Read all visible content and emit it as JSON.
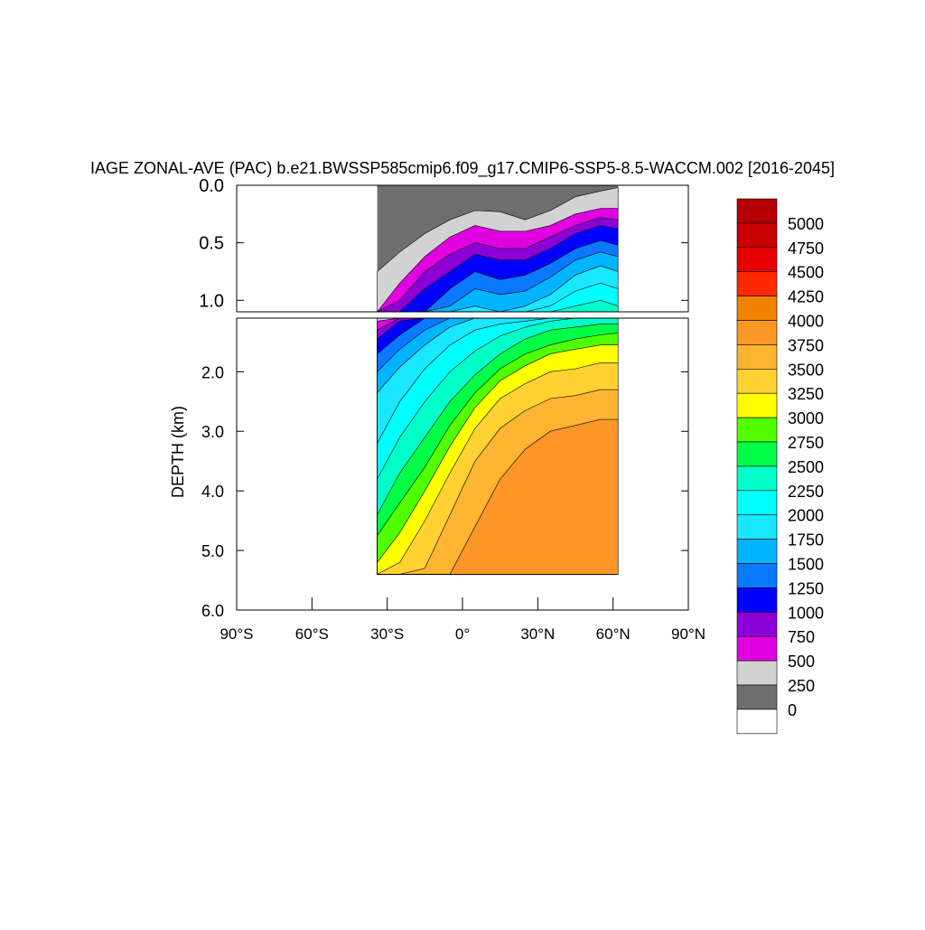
{
  "chart_data": {
    "type": "heatmap",
    "title": "IAGE ZONAL-AVE (PAC) b.e21.BWSSP585cmip6.f09_g17.CMIP6-SSP5-8.5-WACCM.002 [2016-2045]",
    "xlabel": "",
    "ylabel": "DEPTH (km)",
    "x_ticks": [
      "90°S",
      "60°S",
      "30°S",
      "0°",
      "30°N",
      "60°N",
      "90°N"
    ],
    "x_tick_values": [
      -90,
      -60,
      -30,
      0,
      30,
      60,
      90
    ],
    "xlim": [
      -90,
      90
    ],
    "upper_panel": {
      "ylim": [
        0.0,
        1.1
      ],
      "y_ticks": [
        "0.0",
        "0.5",
        "1.0"
      ],
      "y_tick_values": [
        0.0,
        0.5,
        1.0
      ]
    },
    "lower_panel": {
      "ylim": [
        1.1,
        6.0
      ],
      "y_ticks": [
        "2.0",
        "3.0",
        "4.0",
        "5.0",
        "6.0"
      ],
      "y_tick_values": [
        2.0,
        3.0,
        4.0,
        5.0,
        6.0
      ]
    },
    "contour_levels": [
      0,
      250,
      500,
      750,
      1000,
      1250,
      1500,
      1750,
      2000,
      2250,
      2500,
      2750,
      3000,
      3250,
      3500,
      3750,
      4000,
      4250,
      4500,
      4750,
      5000
    ],
    "colorbar_labels": [
      "5000",
      "4750",
      "4500",
      "4250",
      "4000",
      "3750",
      "3500",
      "3250",
      "3000",
      "2750",
      "2500",
      "2250",
      "2000",
      "1750",
      "1500",
      "1250",
      "1000",
      "750",
      "500",
      "250",
      "0"
    ],
    "colors": [
      "#ffffff",
      "#6e6e6e",
      "#d2d2d2",
      "#e100e1",
      "#8c00d7",
      "#0000ff",
      "#0a78ff",
      "#00b4ff",
      "#19e6ff",
      "#00ffff",
      "#00ffc8",
      "#00ff46",
      "#50ff00",
      "#ffff00",
      "#ffd232",
      "#ffb432",
      "#ff9628",
      "#f08200",
      "#ff2800",
      "#e60000",
      "#c80000",
      "#b40000"
    ],
    "data_domain": {
      "lat_range": [
        -34,
        62
      ],
      "max_depth": 5.4
    },
    "surface_contours": {
      "lat": [
        -34,
        -25,
        -15,
        -5,
        5,
        15,
        25,
        35,
        45,
        55,
        62
      ],
      "levels": [
        {
          "value": 250,
          "depth": [
            0.75,
            0.58,
            0.42,
            0.3,
            0.22,
            0.23,
            0.3,
            0.22,
            0.1,
            0.05,
            0.02
          ]
        },
        {
          "value": 500,
          "depth": [
            1.15,
            0.85,
            0.62,
            0.45,
            0.35,
            0.4,
            0.4,
            0.35,
            0.25,
            0.2,
            0.2
          ]
        },
        {
          "value": 750,
          "depth": [
            1.3,
            1.0,
            0.75,
            0.6,
            0.5,
            0.55,
            0.55,
            0.45,
            0.35,
            0.28,
            0.3
          ]
        },
        {
          "value": 1000,
          "depth": [
            1.45,
            1.15,
            0.9,
            0.75,
            0.6,
            0.65,
            0.65,
            0.55,
            0.42,
            0.35,
            0.38
          ]
        },
        {
          "value": 1250,
          "depth": [
            1.7,
            1.38,
            1.1,
            0.9,
            0.75,
            0.82,
            0.78,
            0.68,
            0.55,
            0.48,
            0.52
          ]
        },
        {
          "value": 1500,
          "depth": [
            2.0,
            1.62,
            1.3,
            1.05,
            0.9,
            0.95,
            0.92,
            0.8,
            0.65,
            0.58,
            0.62
          ]
        },
        {
          "value": 1750,
          "depth": [
            2.35,
            1.92,
            1.55,
            1.25,
            1.05,
            1.1,
            1.05,
            0.95,
            0.78,
            0.7,
            0.75
          ]
        },
        {
          "value": 2000,
          "depth": [
            3.2,
            2.5,
            1.95,
            1.55,
            1.3,
            1.2,
            1.15,
            1.05,
            0.92,
            0.85,
            0.9
          ]
        },
        {
          "value": 2250,
          "depth": [
            3.8,
            3.1,
            2.5,
            2.0,
            1.65,
            1.4,
            1.25,
            1.15,
            1.05,
            1.0,
            1.05
          ]
        },
        {
          "value": 2500,
          "depth": [
            4.4,
            3.7,
            3.1,
            2.5,
            2.05,
            1.7,
            1.45,
            1.3,
            1.25,
            1.2,
            1.2
          ]
        },
        {
          "value": 2750,
          "depth": [
            4.75,
            4.2,
            3.6,
            2.9,
            2.35,
            1.95,
            1.7,
            1.55,
            1.45,
            1.38,
            1.35
          ]
        },
        {
          "value": 3000,
          "depth": [
            5.2,
            4.7,
            4.0,
            3.25,
            2.6,
            2.15,
            1.9,
            1.7,
            1.62,
            1.55,
            1.55
          ]
        },
        {
          "value": 3250,
          "depth": [
            9.0,
            5.2,
            4.5,
            3.7,
            2.95,
            2.45,
            2.2,
            2.0,
            1.95,
            1.85,
            1.85
          ]
        },
        {
          "value": 3500,
          "depth": [
            9.0,
            9.0,
            5.3,
            4.4,
            3.5,
            2.95,
            2.65,
            2.45,
            2.4,
            2.3,
            2.3
          ]
        },
        {
          "value": 3750,
          "depth": [
            9.0,
            9.0,
            9.0,
            9.0,
            4.6,
            3.8,
            3.3,
            3.0,
            2.9,
            2.8,
            2.8
          ]
        }
      ]
    }
  }
}
